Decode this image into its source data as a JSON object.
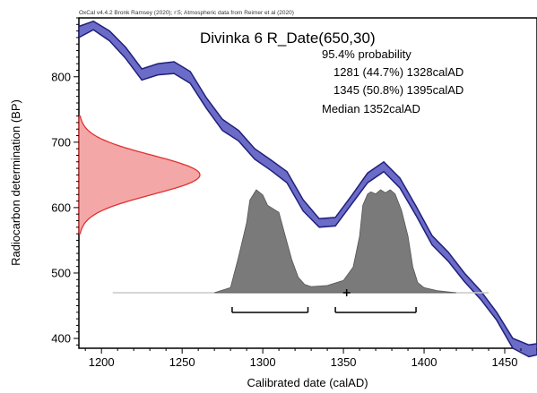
{
  "chart_data": {
    "type": "area",
    "header_note": "OxCal v4.4.2 Bronk Ramsey (2020); r:5; Atmospheric data from Reimer et al (2020)",
    "title": "Divinka 6 R_Date(650,30)",
    "annotations": [
      "95.4% probability",
      "1281 (44.7%) 1328calAD",
      "1345 (50.8%) 1395calAD",
      "Median 1352calAD"
    ],
    "xlabel": "Calibrated date (calAD)",
    "ylabel": "Radiocarbon determination (BP)",
    "xlim": [
      1186,
      1470
    ],
    "ylim": [
      385,
      890
    ],
    "xticks": [
      1200,
      1250,
      1300,
      1350,
      1400,
      1450
    ],
    "yticks": [
      400,
      500,
      600,
      700,
      800
    ],
    "series": [
      {
        "kind": "calibration_curve_band",
        "color": "#6b6bc8",
        "x": [
          1186,
          1195,
          1205,
          1215,
          1225,
          1235,
          1245,
          1255,
          1265,
          1275,
          1285,
          1295,
          1305,
          1315,
          1325,
          1335,
          1345,
          1355,
          1365,
          1375,
          1385,
          1395,
          1405,
          1415,
          1425,
          1435,
          1445,
          1455,
          1465,
          1470
        ],
        "upper": [
          877,
          885,
          870,
          845,
          812,
          820,
          823,
          808,
          768,
          735,
          718,
          690,
          673,
          655,
          612,
          583,
          585,
          618,
          653,
          670,
          645,
          602,
          557,
          532,
          500,
          473,
          440,
          400,
          390,
          392
        ],
        "lower": [
          860,
          872,
          855,
          828,
          795,
          803,
          805,
          790,
          752,
          718,
          702,
          674,
          657,
          638,
          595,
          570,
          572,
          605,
          638,
          655,
          630,
          588,
          543,
          518,
          487,
          460,
          428,
          385,
          372,
          375
        ]
      },
      {
        "kind": "radiocarbon_measurement",
        "mean": 650,
        "sd": 30,
        "color": "#f08a8a"
      },
      {
        "kind": "calibrated_probability",
        "color": "#7a7a7a",
        "x": [
          1270,
          1280,
          1285,
          1290,
          1292,
          1296,
          1300,
          1303,
          1306,
          1310,
          1314,
          1318,
          1322,
          1326,
          1330,
          1340,
          1350,
          1356,
          1360,
          1362,
          1365,
          1367,
          1370,
          1373,
          1376,
          1379,
          1382,
          1386,
          1390,
          1393,
          1396,
          1400,
          1408,
          1420
        ],
        "y": [
          0,
          0.05,
          0.35,
          0.68,
          0.9,
          1.0,
          0.95,
          0.85,
          0.82,
          0.78,
          0.55,
          0.32,
          0.15,
          0.08,
          0.06,
          0.07,
          0.12,
          0.25,
          0.55,
          0.85,
          0.96,
          0.98,
          0.96,
          1.0,
          0.97,
          1.0,
          0.96,
          0.8,
          0.55,
          0.25,
          0.1,
          0.05,
          0.02,
          0
        ]
      }
    ],
    "ranges_95_4": [
      [
        1281,
        1328
      ],
      [
        1345,
        1395
      ]
    ],
    "median": 1352,
    "grid": false
  }
}
